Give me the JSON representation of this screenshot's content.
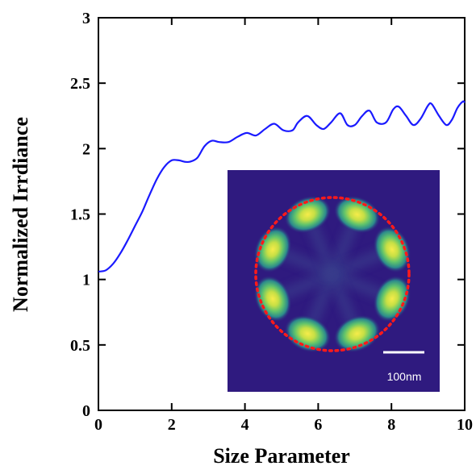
{
  "chart_data": {
    "type": "line",
    "xlabel": "Size Parameter",
    "ylabel": "Normalized Irrdiance",
    "xlim": [
      0,
      10
    ],
    "ylim": [
      0,
      3
    ],
    "xticks": [
      0,
      2,
      4,
      6,
      8,
      10
    ],
    "xtick_labels": [
      "0",
      "2",
      "4",
      "6",
      "8",
      "10"
    ],
    "yticks": [
      0,
      0.5,
      1,
      1.5,
      2,
      2.5,
      3
    ],
    "ytick_labels": [
      "0",
      "0.5",
      "1",
      "1.5",
      "2",
      "2.5",
      "3"
    ],
    "grid": false,
    "series": [
      {
        "color": "#1a1aff",
        "x": [
          0,
          0.2,
          0.4,
          0.6,
          0.8,
          1.0,
          1.2,
          1.4,
          1.6,
          1.8,
          2.0,
          2.2,
          2.35,
          2.5,
          2.7,
          2.9,
          3.1,
          3.3,
          3.55,
          3.8,
          4.05,
          4.3,
          4.55,
          4.8,
          5.05,
          5.3,
          5.45,
          5.7,
          5.95,
          6.15,
          6.35,
          6.6,
          6.8,
          7.0,
          7.2,
          7.4,
          7.6,
          7.85,
          8.05,
          8.2,
          8.4,
          8.6,
          8.8,
          9.0,
          9.1,
          9.3,
          9.5,
          9.65,
          9.8,
          9.95,
          10.0
        ],
        "y": [
          1.06,
          1.07,
          1.12,
          1.2,
          1.3,
          1.41,
          1.52,
          1.65,
          1.77,
          1.86,
          1.91,
          1.91,
          1.9,
          1.9,
          1.93,
          2.02,
          2.06,
          2.05,
          2.05,
          2.09,
          2.12,
          2.1,
          2.15,
          2.19,
          2.14,
          2.14,
          2.2,
          2.25,
          2.18,
          2.15,
          2.2,
          2.27,
          2.18,
          2.18,
          2.25,
          2.29,
          2.2,
          2.2,
          2.3,
          2.32,
          2.25,
          2.18,
          2.23,
          2.33,
          2.34,
          2.25,
          2.18,
          2.22,
          2.31,
          2.36,
          2.35
        ]
      }
    ],
    "inset": {
      "type": "heatmap",
      "scale_bar_label": "100nm",
      "background_color": "#2f1a7f",
      "ring_color": "#ff1a1a",
      "lobes": 8,
      "lobe_angles_deg": [
        -67.5,
        -22.5,
        22.5,
        67.5,
        112.5,
        157.5,
        202.5,
        247.5
      ]
    }
  }
}
